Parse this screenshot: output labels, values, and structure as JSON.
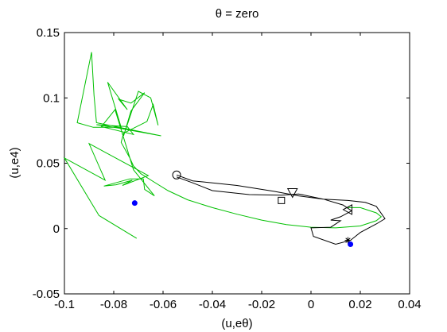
{
  "chart_data": {
    "type": "line",
    "title": "θ = zero",
    "xlabel": "(u,eθ)",
    "ylabel": "(u,e4)",
    "xlim": [
      -0.1,
      0.04
    ],
    "ylim": [
      -0.05,
      0.15
    ],
    "xticks": [
      "-0.1",
      "-0.08",
      "-0.06",
      "-0.04",
      "-0.02",
      "0",
      "0.02",
      "0.04"
    ],
    "yticks": [
      "-0.05",
      "0",
      "0.05",
      "0.1",
      "0.15"
    ],
    "grid": false,
    "colors": {
      "green_series": "#00c000",
      "black_series": "#000000",
      "points": "#0000ff"
    },
    "series": [
      {
        "color": "#00c000",
        "points": [
          [
            -0.0707,
            -0.0075
          ],
          [
            -0.086,
            0.01
          ],
          [
            -0.1,
            0.054
          ],
          [
            -0.0835,
            0.037
          ],
          [
            -0.09,
            0.065
          ],
          [
            -0.066,
            0.0405
          ],
          [
            -0.0765,
            0.033
          ],
          [
            -0.0725,
            0.037
          ],
          [
            -0.079,
            0.0335
          ],
          [
            -0.084,
            0.0325
          ],
          [
            -0.0735,
            0.038
          ],
          [
            -0.068,
            0.038
          ],
          [
            -0.0675,
            0.03
          ],
          [
            -0.0635,
            0.025
          ],
          [
            -0.072,
            0.045
          ],
          [
            -0.0795,
            0.091
          ],
          [
            -0.085,
            0.078
          ],
          [
            -0.072,
            0.072
          ],
          [
            -0.0745,
            0.078
          ],
          [
            -0.087,
            0.0795
          ],
          [
            -0.0783,
            0.077
          ],
          [
            -0.0608,
            0.071
          ],
          [
            -0.087,
            0.081
          ],
          [
            -0.088,
            0.102
          ],
          [
            -0.089,
            0.135
          ],
          [
            -0.0948,
            0.081
          ],
          [
            -0.0883,
            0.0775
          ],
          [
            -0.077,
            0.0775
          ],
          [
            -0.0825,
            0.112
          ],
          [
            -0.0745,
            0.091
          ],
          [
            -0.078,
            0.099
          ],
          [
            -0.073,
            0.096
          ],
          [
            -0.0675,
            0.104
          ],
          [
            -0.073,
            0.09
          ],
          [
            -0.076,
            0.071
          ],
          [
            -0.07,
            0.105
          ],
          [
            -0.065,
            0.1
          ],
          [
            -0.062,
            0.079
          ],
          [
            -0.064,
            0.095
          ],
          [
            -0.0665,
            0.082
          ],
          [
            -0.076,
            0.073
          ],
          [
            -0.077,
            0.066
          ],
          [
            -0.0735,
            0.054
          ],
          [
            -0.072,
            0.048
          ],
          [
            -0.069,
            0.042
          ],
          [
            -0.064,
            0.036
          ],
          [
            -0.058,
            0.029
          ],
          [
            -0.05,
            0.022
          ],
          [
            -0.04,
            0.016
          ],
          [
            -0.03,
            0.011
          ],
          [
            -0.02,
            0.0065
          ],
          [
            -0.01,
            0.003
          ],
          [
            0.0,
            0.001
          ],
          [
            0.01,
            0.0005
          ],
          [
            0.02,
            0.002
          ],
          [
            0.0265,
            0.006
          ],
          [
            0.0285,
            0.009
          ],
          [
            0.0265,
            0.012
          ],
          [
            0.02,
            0.016
          ],
          [
            0.015,
            0.016
          ]
        ]
      },
      {
        "color": "#000000",
        "points": [
          [
            -0.0545,
            0.041
          ],
          [
            -0.048,
            0.0365
          ],
          [
            -0.03,
            0.033
          ],
          [
            -0.015,
            0.0285
          ],
          [
            -0.005,
            0.025
          ],
          [
            0.005,
            0.0225
          ],
          [
            0.015,
            0.0215
          ],
          [
            0.022,
            0.02
          ],
          [
            0.0265,
            0.017
          ],
          [
            0.03,
            0.0075
          ],
          [
            0.0265,
            0.0035
          ],
          [
            0.02,
            -0.003
          ],
          [
            0.016,
            -0.009
          ],
          [
            0.01,
            -0.012
          ],
          [
            0.001,
            -0.006
          ],
          [
            0.0,
            0.0005
          ],
          [
            0.008,
            0.001
          ],
          [
            0.012,
            0.006
          ],
          [
            0.008,
            0.0065
          ],
          [
            0.012,
            0.009
          ],
          [
            0.0165,
            0.0135
          ],
          [
            0.013,
            0.018
          ],
          [
            0.005,
            0.0225
          ],
          [
            -0.005,
            0.0265
          ],
          [
            -0.012,
            0.0255
          ],
          [
            -0.025,
            0.026
          ],
          [
            -0.04,
            0.029
          ],
          [
            -0.048,
            0.035
          ],
          [
            -0.0545,
            0.0395
          ]
        ]
      }
    ],
    "markers": [
      {
        "shape": "circle",
        "x": -0.0545,
        "y": 0.041
      },
      {
        "shape": "triangle-down",
        "x": -0.0075,
        "y": 0.0275
      },
      {
        "shape": "square",
        "x": -0.012,
        "y": 0.0215
      },
      {
        "shape": "triangle-left",
        "x": 0.015,
        "y": 0.0145
      },
      {
        "shape": "star",
        "x": 0.015,
        "y": -0.009
      }
    ],
    "points": [
      {
        "x": -0.0715,
        "y": 0.0195
      },
      {
        "x": 0.016,
        "y": -0.012
      }
    ]
  }
}
